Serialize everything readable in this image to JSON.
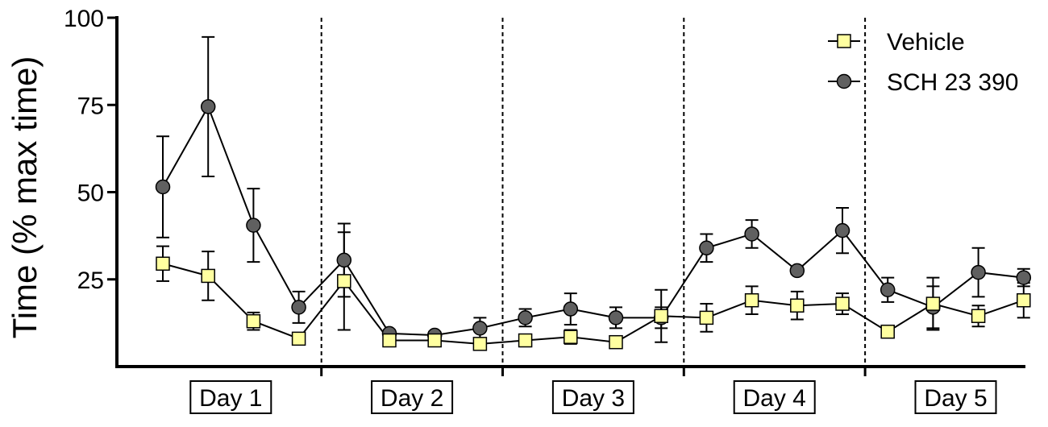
{
  "chart_data": {
    "type": "line",
    "title": "",
    "xlabel": "",
    "ylabel": "Time (% max time)",
    "ylim": [
      0,
      100
    ],
    "yticks": [
      25,
      50,
      75,
      100
    ],
    "grid": false,
    "legend_position": "top-right",
    "groups": [
      "Day 1",
      "Day 2",
      "Day 3",
      "Day 4",
      "Day 5"
    ],
    "points_per_group": 4,
    "x": [
      1,
      2,
      3,
      4,
      5,
      6,
      7,
      8,
      9,
      10,
      11,
      12,
      13,
      14,
      15,
      16,
      17,
      18,
      19,
      20
    ],
    "series": [
      {
        "name": "Vehicle",
        "marker": "square",
        "color": "#ffffa0",
        "values": [
          29.5,
          26,
          13,
          8,
          24.5,
          7.5,
          7.5,
          6.5,
          7.5,
          8.5,
          7,
          14.5,
          14,
          19,
          17.5,
          18,
          10,
          18,
          14.5,
          19
        ],
        "errors": [
          5,
          7,
          2.5,
          1,
          14,
          1,
          1,
          1,
          1,
          2,
          1,
          7.5,
          4,
          4,
          4,
          3,
          1.5,
          7.5,
          3,
          5
        ]
      },
      {
        "name": "SCH 23 390",
        "marker": "circle",
        "color": "#606060",
        "values": [
          51.5,
          74.5,
          40.5,
          17,
          30.5,
          9.5,
          9,
          11,
          14,
          16.5,
          14,
          14,
          34,
          38,
          27.5,
          39,
          22,
          17,
          27,
          25.5
        ],
        "errors": [
          14.5,
          20,
          10.5,
          4.5,
          10.5,
          1,
          1,
          3,
          2.5,
          4.5,
          3,
          3,
          4,
          4,
          1,
          6.5,
          3.5,
          6,
          7,
          2.5
        ]
      }
    ]
  }
}
